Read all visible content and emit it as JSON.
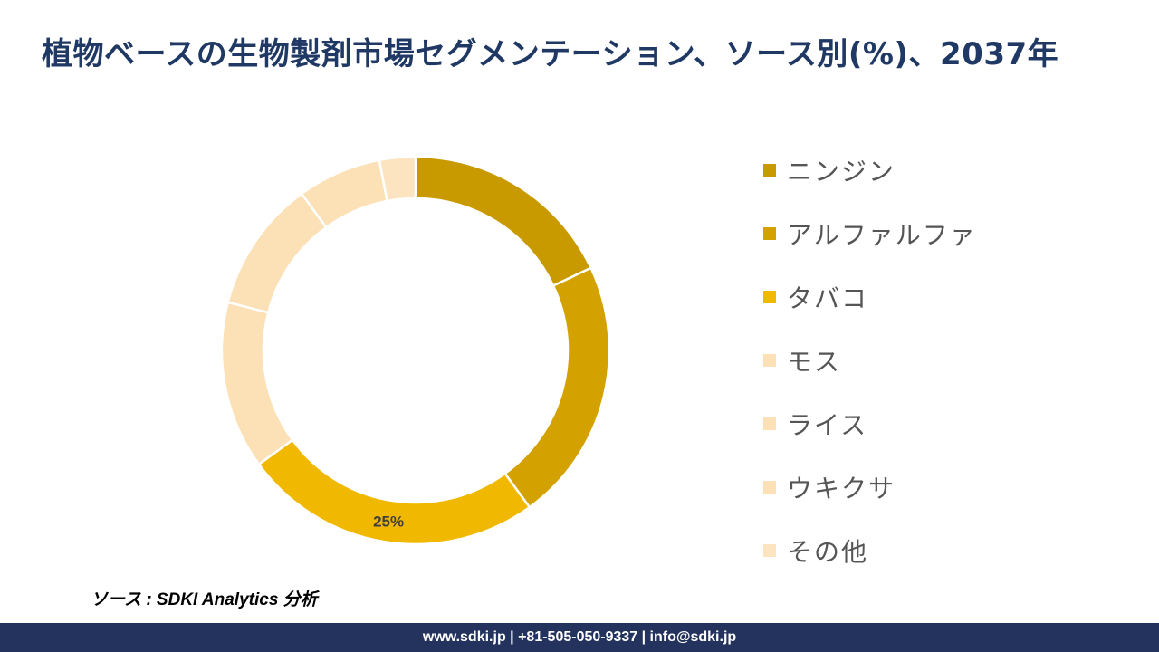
{
  "title": "植物ベースの生物製剤市場セグメンテーション、ソース別(%)、2037年",
  "source": "ソース : SDKI Analytics 分析",
  "footer": "www.sdki.jp | +81-505-050-9337 | info@sdki.jp",
  "chart_data": {
    "type": "pie",
    "variant": "donut",
    "categories": [
      "ニンジン",
      "アルファルファ",
      "タバコ",
      "モス",
      "ライス",
      "ウキクサ",
      "その他"
    ],
    "values": [
      18,
      22,
      25,
      14,
      11,
      7,
      3
    ],
    "data_labels": [
      "",
      "",
      "25%",
      "",
      "",
      "",
      ""
    ],
    "colors": [
      "#c99a00",
      "#d4a200",
      "#f0b900",
      "#fce0b6",
      "#fce0b6",
      "#fce0b6",
      "#fde4c0"
    ],
    "legend_swatch_colors": [
      "#c99a00",
      "#d4a200",
      "#f0b900",
      "#fce0b6",
      "#fce0b6",
      "#fce0b6",
      "#fde4c0"
    ],
    "unit": "%",
    "legend_position": "right",
    "start_angle_deg": 0,
    "direction": "clockwise"
  }
}
